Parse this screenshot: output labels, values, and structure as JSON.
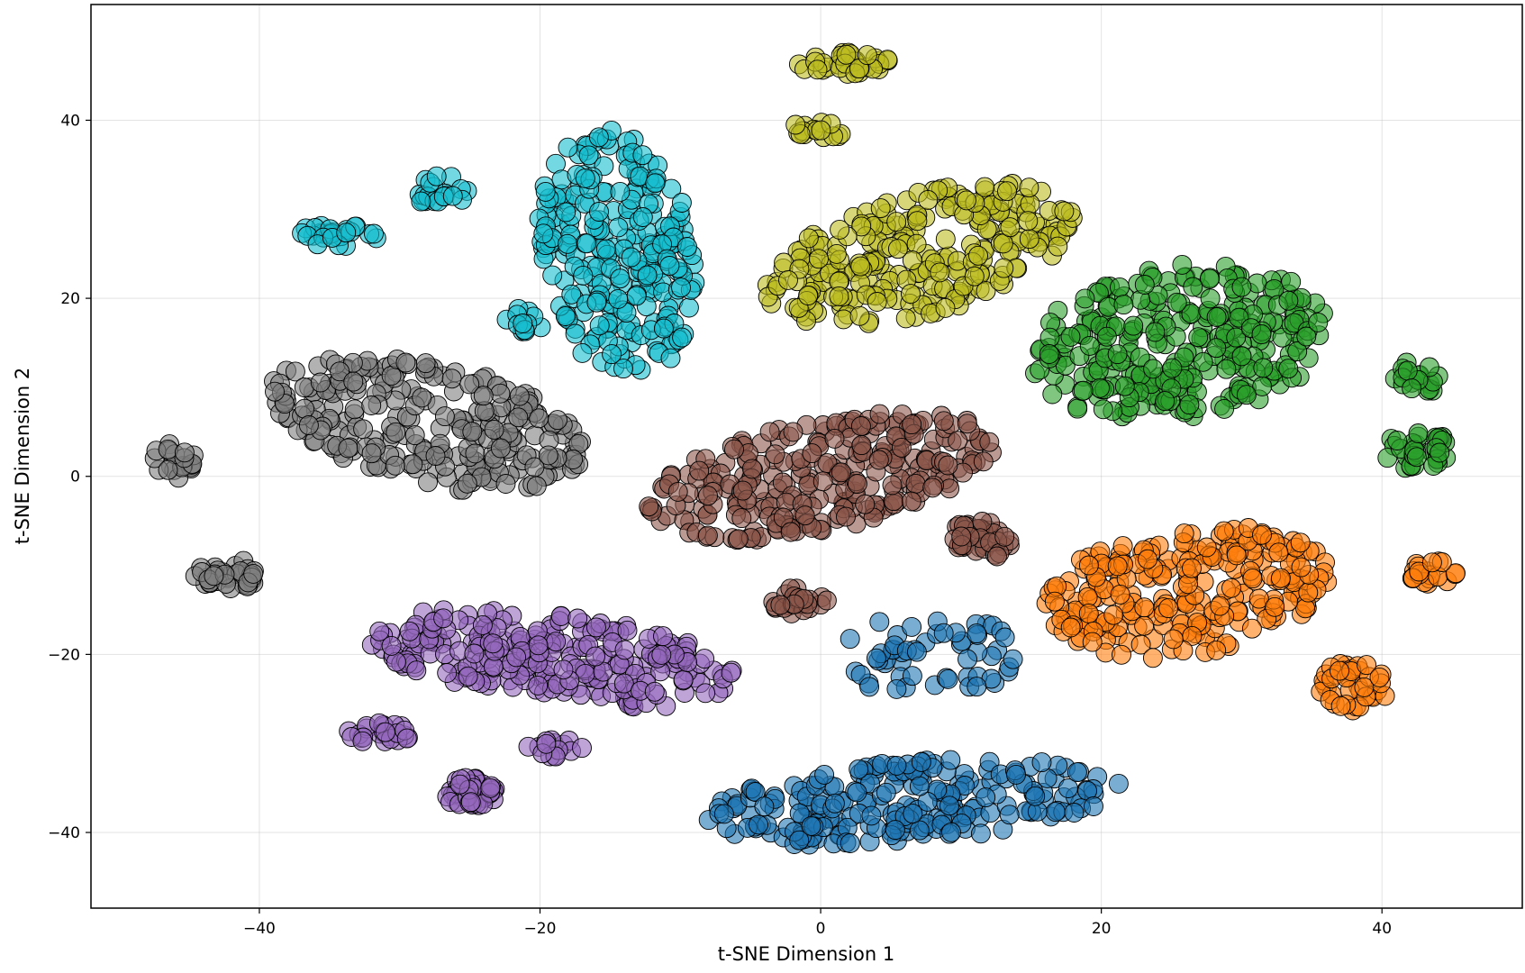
{
  "chart_data": {
    "type": "scatter",
    "title": "",
    "xlabel": "t-SNE Dimension 1",
    "ylabel": "t-SNE Dimension 2",
    "xlim": [
      -52,
      50
    ],
    "ylim": [
      -48.5,
      53
    ],
    "xticks": [
      -40,
      -20,
      0,
      20,
      40
    ],
    "yticks": [
      -40,
      -20,
      0,
      20,
      40
    ],
    "xtick_labels": [
      "−40",
      "−20",
      "0",
      "20",
      "40"
    ],
    "ytick_labels": [
      "−40",
      "−20",
      "0",
      "20",
      "40"
    ],
    "grid": true,
    "marker": "circle",
    "marker_opacity": 0.6,
    "series": [
      {
        "color": "#1f77b4",
        "clusters": [
          {
            "cx": 7.5,
            "cy": -20,
            "rx": 7,
            "ry": 4.5,
            "n": 55,
            "angle": 0
          },
          {
            "cx": 6.5,
            "cy": -36.5,
            "rx": 15,
            "ry": 4.5,
            "n": 230,
            "angle": 8
          }
        ]
      },
      {
        "color": "#ff7f0e",
        "clusters": [
          {
            "cx": 26,
            "cy": -13,
            "rx": 10.5,
            "ry": 7,
            "n": 250,
            "angle": 18
          },
          {
            "cx": 38,
            "cy": -23.5,
            "rx": 2.6,
            "ry": 2.8,
            "n": 40,
            "angle": 0
          },
          {
            "cx": 43.5,
            "cy": -11,
            "rx": 2,
            "ry": 1.5,
            "n": 20,
            "angle": 0
          }
        ]
      },
      {
        "color": "#2ca02c",
        "clusters": [
          {
            "cx": 25.5,
            "cy": 15,
            "rx": 11,
            "ry": 8.5,
            "n": 300,
            "angle": 22
          },
          {
            "cx": 42.5,
            "cy": 11,
            "rx": 1.7,
            "ry": 2,
            "n": 20,
            "angle": 0
          },
          {
            "cx": 42.5,
            "cy": 3,
            "rx": 2.5,
            "ry": 2.2,
            "n": 35,
            "angle": 0
          }
        ]
      },
      {
        "color": "#8c564b",
        "clusters": [
          {
            "cx": 0,
            "cy": 0,
            "rx": 13,
            "ry": 6,
            "n": 280,
            "angle": 20
          },
          {
            "cx": 11.5,
            "cy": -7,
            "rx": 2.2,
            "ry": 2.3,
            "n": 40,
            "angle": 0
          },
          {
            "cx": -1.5,
            "cy": -14,
            "rx": 2,
            "ry": 1.5,
            "n": 25,
            "angle": 0
          }
        ]
      },
      {
        "color": "#9467bd",
        "clusters": [
          {
            "cx": -19,
            "cy": -20.5,
            "rx": 13.5,
            "ry": 5,
            "n": 260,
            "angle": -12
          },
          {
            "cx": -31.5,
            "cy": -28.8,
            "rx": 2.5,
            "ry": 1.1,
            "n": 25,
            "angle": 0
          },
          {
            "cx": -25,
            "cy": -35.5,
            "rx": 2,
            "ry": 1.8,
            "n": 40,
            "angle": 0
          },
          {
            "cx": -19,
            "cy": -30.5,
            "rx": 2,
            "ry": 1,
            "n": 15,
            "angle": 0
          }
        ]
      },
      {
        "color": "#7f7f7f",
        "clusters": [
          {
            "cx": -28,
            "cy": 6,
            "rx": 12,
            "ry": 6.5,
            "n": 260,
            "angle": -25
          },
          {
            "cx": -46,
            "cy": 2,
            "rx": 1.5,
            "ry": 2.3,
            "n": 20,
            "angle": 0
          },
          {
            "cx": -42,
            "cy": -11,
            "rx": 2.6,
            "ry": 1.6,
            "n": 35,
            "angle": 0
          }
        ]
      },
      {
        "color": "#bcbd22",
        "clusters": [
          {
            "cx": 7,
            "cy": 25,
            "rx": 12,
            "ry": 6.5,
            "n": 260,
            "angle": 28
          },
          {
            "cx": 1.5,
            "cy": 46.5,
            "rx": 3.5,
            "ry": 1.3,
            "n": 35,
            "angle": 0
          },
          {
            "cx": 0,
            "cy": 39,
            "rx": 2.2,
            "ry": 1,
            "n": 15,
            "angle": 0
          }
        ]
      },
      {
        "color": "#17becf",
        "clusters": [
          {
            "cx": -14.5,
            "cy": 25,
            "rx": 5.5,
            "ry": 14,
            "n": 260,
            "angle": 5
          },
          {
            "cx": -27,
            "cy": 32,
            "rx": 1.8,
            "ry": 2,
            "n": 20,
            "angle": 0
          },
          {
            "cx": -34.5,
            "cy": 27,
            "rx": 3.2,
            "ry": 1.2,
            "n": 30,
            "angle": 0
          },
          {
            "cx": -21,
            "cy": 17.5,
            "rx": 1.5,
            "ry": 1.5,
            "n": 12,
            "angle": 0
          }
        ]
      }
    ]
  }
}
